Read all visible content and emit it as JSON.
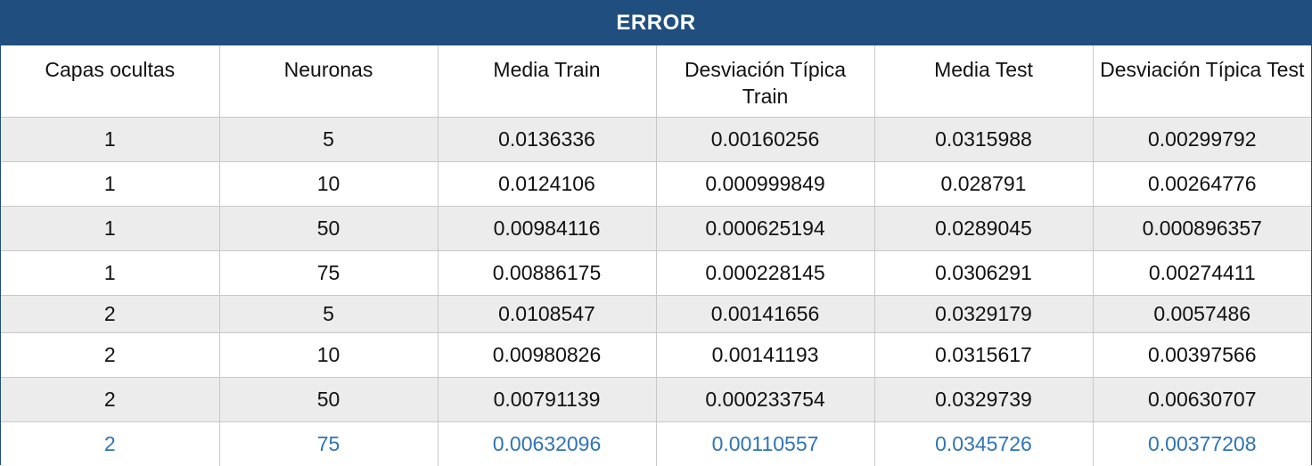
{
  "table": {
    "title": "ERROR",
    "headers": [
      "Capas ocultas",
      "Neuronas",
      "Media Train",
      "Desviación Típica Train",
      "Media Test",
      "Desviación Típica Test"
    ],
    "rows": [
      [
        "1",
        "5",
        "0.0136336",
        "0.00160256",
        "0.0315988",
        "0.00299792"
      ],
      [
        "1",
        "10",
        "0.0124106",
        "0.000999849",
        "0.028791",
        "0.00264776"
      ],
      [
        "1",
        "50",
        "0.00984116",
        "0.000625194",
        "0.0289045",
        "0.000896357"
      ],
      [
        "1",
        "75",
        "0.00886175",
        "0.000228145",
        "0.0306291",
        "0.00274411"
      ],
      [
        "2",
        "5",
        "0.0108547",
        "0.00141656",
        "0.0329179",
        "0.0057486"
      ],
      [
        "2",
        "10",
        "0.00980826",
        "0.00141193",
        "0.0315617",
        "0.00397566"
      ],
      [
        "2",
        "50",
        "0.00791139",
        "0.000233754",
        "0.0329739",
        "0.00630707"
      ],
      [
        "2",
        "75",
        "0.00632096",
        "0.00110557",
        "0.0345726",
        "0.00377208"
      ]
    ]
  },
  "colors": {
    "header_bg": "#1f4e7f",
    "row_alt_bg": "#ececec",
    "highlight_text": "#2f74b5"
  }
}
